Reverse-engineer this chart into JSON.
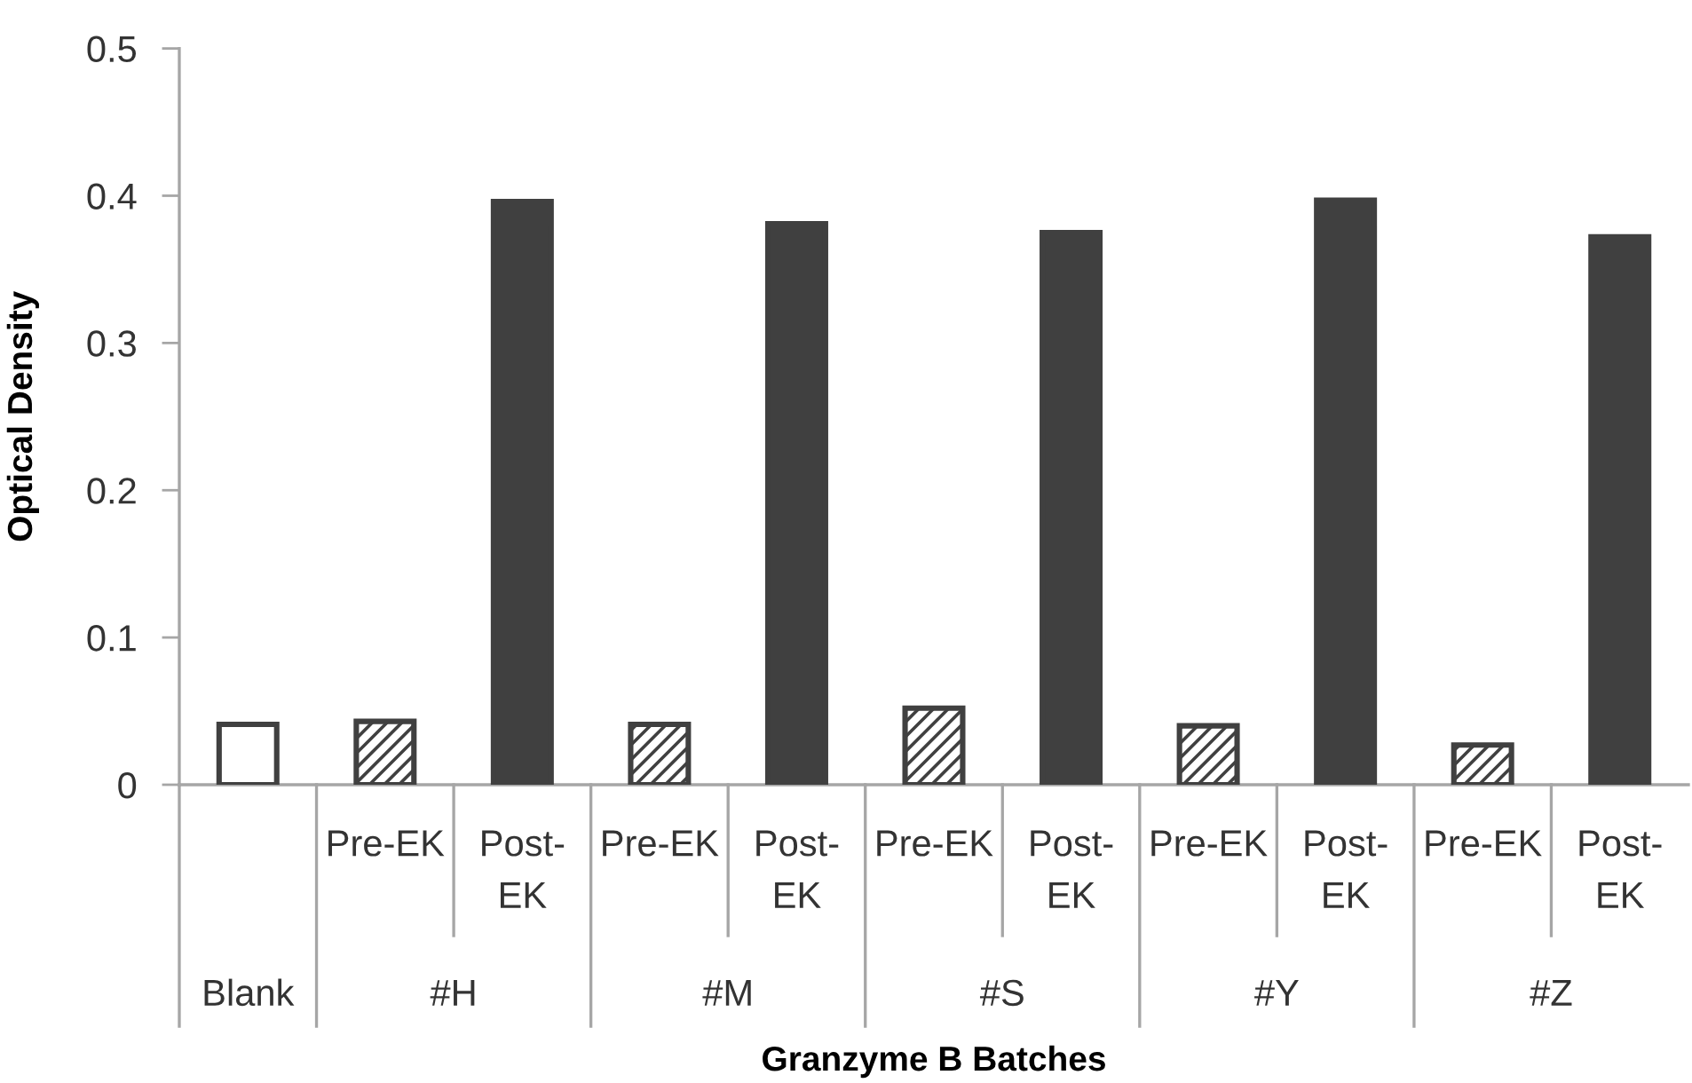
{
  "chart_data": {
    "type": "bar",
    "xlabel": "Granzyme B Batches",
    "ylabel": "Optical Density",
    "categories": [
      "Blank",
      "#H",
      "#M",
      "#S",
      "#Y",
      "#Z"
    ],
    "series": [
      {
        "color": "#ffffff",
        "values": [
          0.041,
          null,
          null,
          null,
          null,
          null
        ]
      },
      {
        "name": "Pre-EK",
        "color": "#404040",
        "values": [
          null,
          0.043,
          0.041,
          0.052,
          0.04,
          0.027
        ]
      },
      {
        "name": "Post-EK",
        "color": "#404040",
        "values": [
          null,
          0.396,
          0.381,
          0.375,
          0.397,
          0.372
        ]
      }
    ],
    "ylim": [
      0,
      0.5
    ],
    "yticks": [
      0,
      0.1,
      0.2,
      0.3,
      0.4,
      0.5
    ]
  }
}
